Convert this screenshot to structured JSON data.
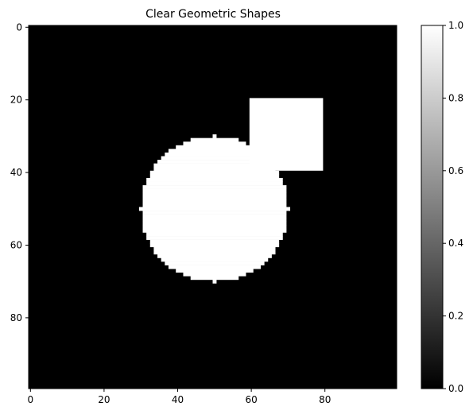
{
  "chart_data": {
    "type": "heatmap",
    "title": "Clear Geometric Shapes",
    "xlabel": "",
    "ylabel": "",
    "grid": false,
    "image_size": [
      100,
      100
    ],
    "colormap": "gray",
    "background_value": 0,
    "shapes": [
      {
        "kind": "circle",
        "value": 1,
        "center_col": 50,
        "center_row": 50,
        "radius": 20
      },
      {
        "kind": "rectangle",
        "value": 1,
        "col_start": 60,
        "col_end": 79,
        "row_start": 20,
        "row_end": 39
      }
    ],
    "xlim": [
      -0.5,
      99.5
    ],
    "ylim": [
      99.5,
      -0.5
    ],
    "xticks": [
      0,
      20,
      40,
      60,
      80
    ],
    "yticks": [
      0,
      20,
      40,
      60,
      80
    ],
    "xtick_labels": [
      "0",
      "20",
      "40",
      "60",
      "80"
    ],
    "ytick_labels": [
      "0",
      "20",
      "40",
      "60",
      "80"
    ],
    "colorbar": {
      "range": [
        0.0,
        1.0
      ],
      "ticks": [
        0.0,
        0.2,
        0.4,
        0.6,
        0.8,
        1.0
      ],
      "tick_labels": [
        "0.0",
        "0.2",
        "0.4",
        "0.6",
        "0.8",
        "1.0"
      ]
    }
  }
}
